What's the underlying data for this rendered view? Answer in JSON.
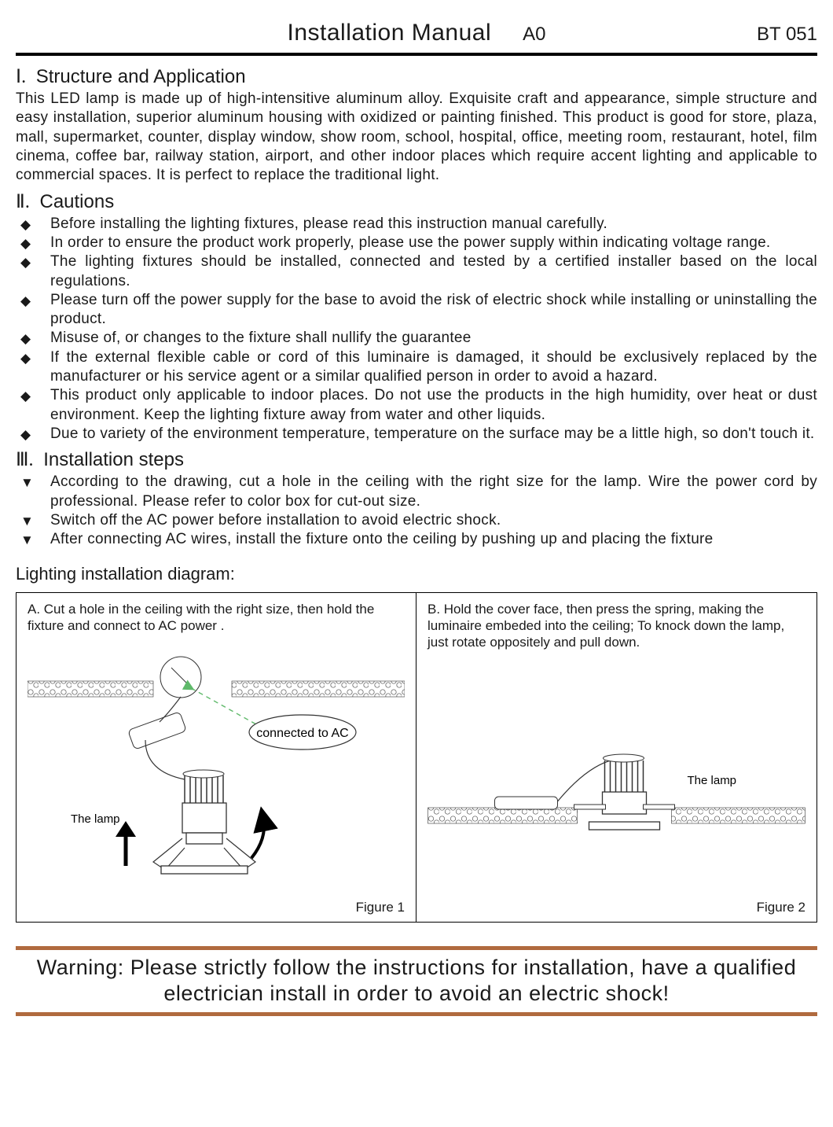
{
  "header": {
    "title": "Installation Manual",
    "revision": "A0",
    "doc_code": "BT 051"
  },
  "section1": {
    "numeral": "Ⅰ.",
    "heading": "Structure and Application",
    "body": "This LED lamp is made up of high-intensitive aluminum alloy. Exquisite craft and appearance, simple structure and easy installation, superior aluminum housing with oxidized or painting finished. This product is good for store, plaza, mall, supermarket, counter, display window, show room, school, hospital, office, meeting room, restaurant, hotel, film cinema, coffee bar, railway station, airport, and other indoor places which require accent lighting and applicable to commercial spaces. It is perfect to replace the traditional light."
  },
  "section2": {
    "numeral": "Ⅱ.",
    "heading": "Cautions",
    "marker": "◆",
    "items": [
      "Before installing the lighting fixtures, please read this instruction manual carefully.",
      "In order to ensure the product work properly, please use the power supply within indicating voltage range.",
      "The lighting fixtures should be installed, connected and tested by a certified installer based on the local regulations.",
      "Please turn off the power supply for the base to avoid the risk of electric shock while installing or uninstalling the product.",
      "Misuse of, or changes to the fixture shall nullify the guarantee",
      "If the external flexible cable or cord of this luminaire is damaged, it should be exclusively replaced by the manufacturer or his service agent or a similar qualified person in order to avoid a hazard.",
      "This product only applicable to indoor places. Do not use the products in the high humidity, over heat or dust environment. Keep the lighting fixture away from water and other liquids.",
      "Due to variety of the environment temperature, temperature on the surface may be a little high, so don't touch it."
    ]
  },
  "section3": {
    "numeral": "Ⅲ.",
    "heading": "Installation steps",
    "marker": "▼",
    "items": [
      "According to the drawing, cut a hole in the ceiling with the right size for the lamp. Wire the power cord by professional. Please refer to color box for cut-out size.",
      "Switch off the AC power before installation to avoid electric shock.",
      "After connecting AC wires, install the fixture onto the ceiling by pushing up and placing the fixture"
    ]
  },
  "diagram": {
    "title": "Lighting installation diagram:",
    "panelA": {
      "caption": "A. Cut a hole in the ceiling with the right size, then hold the fixture and connect to AC power .",
      "callout": "connected to AC",
      "lamp_label": "The lamp",
      "figure_label": "Figure 1"
    },
    "panelB": {
      "caption": "B. Hold the cover face, then press the spring, making the luminaire embeded into the ceiling; To knock down the lamp, just rotate oppositely and pull down.",
      "lamp_label": "The lamp",
      "figure_label": "Figure 2"
    },
    "colors": {
      "outline": "#000000",
      "dashed_arrow": "#5fb96a",
      "warning_rule": "#b06a3e"
    }
  },
  "warning": "Warning: Please strictly follow the instructions for installation, have a qualified electrician install in order to avoid an electric shock!"
}
